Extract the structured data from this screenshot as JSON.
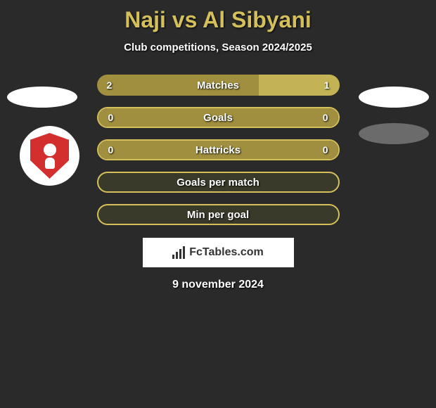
{
  "title": "Naji vs Al Sibyani",
  "subtitle": "Club competitions, Season 2024/2025",
  "date": "9 november 2024",
  "watermark_text": "FcTables.com",
  "colors": {
    "background": "#2a2a2a",
    "accent": "#d4c05a",
    "left_segment": "#a08f3f",
    "right_segment": "#c4b354",
    "border": "#d4c05a",
    "full_bg": "#3a3a2a"
  },
  "bars": [
    {
      "label": "Matches",
      "left_value": "2",
      "right_value": "1",
      "left_pct": 66.7,
      "right_pct": 33.3,
      "left_color": "#a08f3f",
      "right_color": "#c4b354"
    },
    {
      "label": "Goals",
      "left_value": "0",
      "right_value": "0",
      "left_pct": 50,
      "right_pct": 50,
      "left_color": "#a08f3f",
      "right_color": "#a08f3f",
      "border_color": "#d4c05a"
    },
    {
      "label": "Hattricks",
      "left_value": "0",
      "right_value": "0",
      "left_pct": 50,
      "right_pct": 50,
      "left_color": "#a08f3f",
      "right_color": "#a08f3f",
      "border_color": "#d4c05a"
    }
  ],
  "full_bars": [
    {
      "label": "Goals per match",
      "border_color": "#d4c05a",
      "bg_color": "#3a3a2a"
    },
    {
      "label": "Min per goal",
      "border_color": "#d4c05a",
      "bg_color": "#3a3a2a"
    }
  ]
}
